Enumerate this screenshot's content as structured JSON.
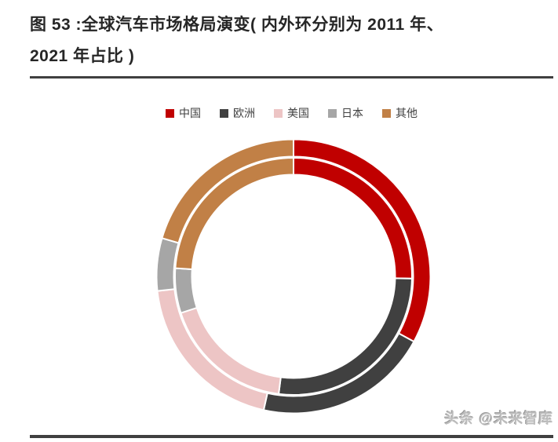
{
  "title": {
    "line1": "图 53 :全球汽车市场格局演变( 内外环分别为 2011 年、",
    "line2": "2021 年占比 )"
  },
  "watermark": "头条 @未来智库",
  "chart_data": {
    "type": "pie",
    "subtype": "double-ring-donut",
    "title": "全球汽车市场格局演变（内外环分别为 2011 年、2021 年占比）",
    "legend_position": "top",
    "legend_entries": [
      "中国",
      "欧洲",
      "美国",
      "日本",
      "其他"
    ],
    "categories": [
      "中国",
      "欧洲",
      "美国",
      "日本",
      "其他"
    ],
    "colors": [
      "#C00000",
      "#404040",
      "#EDC5C5",
      "#A6A6A6",
      "#C18046"
    ],
    "unit": "%",
    "start_angle_deg": 0,
    "direction": "clockwise",
    "rings": [
      {
        "name": "2011",
        "position": "inner",
        "values": [
          25.3,
          26.7,
          18.0,
          6.1,
          23.9
        ]
      },
      {
        "name": "2021",
        "position": "outer",
        "values": [
          32.9,
          20.6,
          19.8,
          6.2,
          20.5
        ]
      }
    ]
  }
}
